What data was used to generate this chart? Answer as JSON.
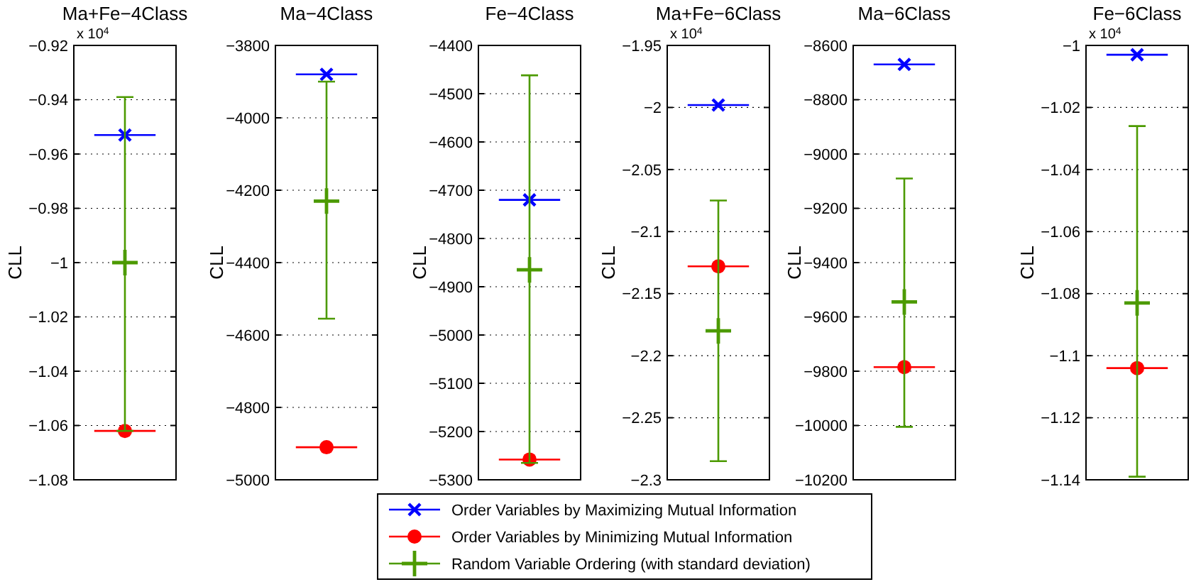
{
  "chart_data": [
    {
      "type": "scatter",
      "title": "Ma+Fe−4Class",
      "ylabel": "CLL",
      "annotations": [
        "x 10$^{4}$"
      ],
      "categories": [
        null
      ],
      "ylim": [
        -1.08,
        -0.92
      ],
      "yticks": [
        -1.08,
        -1.06,
        -1.04,
        -1.02,
        -1,
        -0.98,
        -0.96,
        -0.94,
        -0.92
      ],
      "grid": "y",
      "legend": "bottom",
      "ref_lines": [
        {
          "axis": "y",
          "value": -0.953,
          "color": "#0000ff"
        },
        {
          "axis": "y",
          "value": -1.062,
          "color": "#ff0000"
        }
      ],
      "series": [
        {
          "name": "Order Variables by Maximizing Mutual Information",
          "type": "line",
          "marker": "x",
          "color": "#0000ff",
          "values": [
            -0.953
          ]
        },
        {
          "name": "Order Variables by Minimizing Mutual Information",
          "type": "line",
          "marker": "circle",
          "color": "#ff0000",
          "values": [
            -1.062
          ]
        },
        {
          "name": "Random Variable Ordering (with standard deviation)",
          "type": "scatter",
          "marker": "plus",
          "color": "#4c9a00",
          "values": [
            -1.0
          ],
          "errors": [
            [
              -1.062,
              -0.939
            ]
          ]
        }
      ]
    },
    {
      "type": "scatter",
      "title": "Ma−4Class",
      "ylabel": "CLL",
      "categories": [
        null
      ],
      "ylim": [
        -5000,
        -3800
      ],
      "yticks": [
        -5000,
        -4800,
        -4600,
        -4400,
        -4200,
        -4000,
        -3800
      ],
      "grid": "y",
      "ref_lines": [
        {
          "axis": "y",
          "value": -3880,
          "color": "#0000ff"
        },
        {
          "axis": "y",
          "value": -4910,
          "color": "#ff0000"
        }
      ],
      "series": [
        {
          "type": "line",
          "marker": "x",
          "color": "#0000ff",
          "values": [
            -3880
          ]
        },
        {
          "type": "line",
          "marker": "circle",
          "color": "#ff0000",
          "values": [
            -4910
          ]
        },
        {
          "type": "scatter",
          "marker": "plus",
          "color": "#4c9a00",
          "values": [
            -4230
          ],
          "errors": [
            [
              -4555,
              -3900
            ]
          ]
        }
      ]
    },
    {
      "type": "scatter",
      "title": "Fe−4Class",
      "ylabel": "CLL",
      "categories": [
        null
      ],
      "ylim": [
        -5300,
        -4400
      ],
      "yticks": [
        -5300,
        -5200,
        -5100,
        -5000,
        -4900,
        -4800,
        -4700,
        -4600,
        -4500,
        -4400
      ],
      "grid": "y",
      "ref_lines": [
        {
          "axis": "y",
          "value": -4720,
          "color": "#0000ff"
        },
        {
          "axis": "y",
          "value": -5258,
          "color": "#ff0000"
        }
      ],
      "series": [
        {
          "type": "line",
          "marker": "x",
          "color": "#0000ff",
          "values": [
            -4720
          ]
        },
        {
          "type": "line",
          "marker": "circle",
          "color": "#ff0000",
          "values": [
            -5258
          ]
        },
        {
          "type": "scatter",
          "marker": "plus",
          "color": "#4c9a00",
          "values": [
            -4865
          ],
          "errors": [
            [
              -5265,
              -4462
            ]
          ]
        }
      ]
    },
    {
      "type": "scatter",
      "title": "Ma+Fe−6Class",
      "ylabel": "CLL",
      "annotations": [
        "x 10$^{4}$"
      ],
      "categories": [
        null
      ],
      "ylim": [
        -2.3,
        -1.95
      ],
      "yticks": [
        -2.3,
        -2.25,
        -2.2,
        -2.15,
        -2.1,
        -2.05,
        -2,
        -1.95
      ],
      "grid": "y",
      "ref_lines": [
        {
          "axis": "y",
          "value": -1.998,
          "color": "#0000ff"
        },
        {
          "axis": "y",
          "value": -2.128,
          "color": "#ff0000"
        }
      ],
      "series": [
        {
          "type": "line",
          "marker": "x",
          "color": "#0000ff",
          "values": [
            -1.998
          ]
        },
        {
          "type": "line",
          "marker": "circle",
          "color": "#ff0000",
          "values": [
            -2.128
          ]
        },
        {
          "type": "scatter",
          "marker": "plus",
          "color": "#4c9a00",
          "values": [
            -2.18
          ],
          "errors": [
            [
              -2.285,
              -2.075
            ]
          ]
        }
      ]
    },
    {
      "type": "scatter",
      "title": "Ma−6Class",
      "ylabel": "CLL",
      "categories": [
        null
      ],
      "ylim": [
        -10200,
        -8600
      ],
      "yticks": [
        -10200,
        -10000,
        -9800,
        -9600,
        -9400,
        -9200,
        -9000,
        -8800,
        -8600
      ],
      "grid": "y",
      "ref_lines": [
        {
          "axis": "y",
          "value": -8670,
          "color": "#0000ff"
        },
        {
          "axis": "y",
          "value": -9785,
          "color": "#ff0000"
        }
      ],
      "series": [
        {
          "type": "line",
          "marker": "x",
          "color": "#0000ff",
          "values": [
            -8670
          ]
        },
        {
          "type": "line",
          "marker": "circle",
          "color": "#ff0000",
          "values": [
            -9785
          ]
        },
        {
          "type": "scatter",
          "marker": "plus",
          "color": "#4c9a00",
          "values": [
            -9545
          ],
          "errors": [
            [
              -10005,
              -9090
            ]
          ]
        }
      ]
    },
    {
      "type": "scatter",
      "title": "Fe−6Class",
      "ylabel": "CLL",
      "annotations": [
        "x 10$^{4}$"
      ],
      "categories": [
        null
      ],
      "ylim": [
        -1.14,
        -1
      ],
      "yticks": [
        -1.14,
        -1.12,
        -1.1,
        -1.08,
        -1.06,
        -1.04,
        -1.02,
        -1
      ],
      "grid": "y",
      "ref_lines": [
        {
          "axis": "y",
          "value": -1.003,
          "color": "#0000ff"
        },
        {
          "axis": "y",
          "value": -1.104,
          "color": "#ff0000"
        }
      ],
      "series": [
        {
          "type": "line",
          "marker": "x",
          "color": "#0000ff",
          "values": [
            -1.003
          ]
        },
        {
          "type": "line",
          "marker": "circle",
          "color": "#ff0000",
          "values": [
            -1.104
          ]
        },
        {
          "type": "scatter",
          "marker": "plus",
          "color": "#4c9a00",
          "values": [
            -1.083
          ],
          "errors": [
            [
              -1.139,
              -1.026
            ]
          ]
        }
      ]
    }
  ]
}
